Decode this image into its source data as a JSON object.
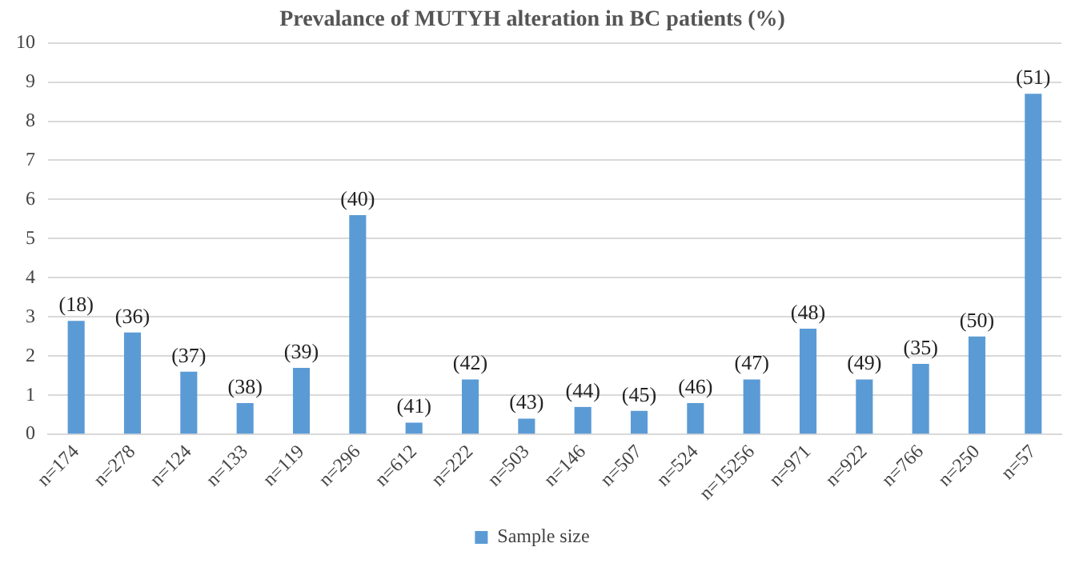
{
  "chart_data": {
    "type": "bar",
    "title": "Prevalance of MUTYH alteration in BC patients (%)",
    "categories": [
      "n=174",
      "n=278",
      "n=124",
      "n=133",
      "n=119",
      "n=296",
      "n=612",
      "n=222",
      "n=503",
      "n=146",
      "n=507",
      "n=524",
      "n=15256",
      "n=971",
      "n=922",
      "n=766",
      "n=250",
      "n=57"
    ],
    "series": [
      {
        "name": "Sample size",
        "color": "#5b9bd5",
        "values": [
          2.9,
          2.6,
          1.6,
          0.8,
          1.7,
          5.6,
          0.3,
          1.4,
          0.4,
          0.7,
          0.6,
          0.8,
          1.4,
          2.7,
          1.4,
          1.8,
          2.5,
          8.7
        ]
      }
    ],
    "annotations": [
      {
        "text": "(18)",
        "x": "n=174",
        "y": 2.9
      },
      {
        "text": "(36)",
        "x": "n=278",
        "y": 2.6
      },
      {
        "text": "(37)",
        "x": "n=124",
        "y": 1.6
      },
      {
        "text": "(38)",
        "x": "n=133",
        "y": 0.8
      },
      {
        "text": "(39)",
        "x": "n=119",
        "y": 1.7
      },
      {
        "text": "(40)",
        "x": "n=296",
        "y": 5.6
      },
      {
        "text": "(41)",
        "x": "n=612",
        "y": 0.3
      },
      {
        "text": "(42)",
        "x": "n=222",
        "y": 1.4
      },
      {
        "text": "(43)",
        "x": "n=503",
        "y": 0.4
      },
      {
        "text": "(44)",
        "x": "n=146",
        "y": 0.7
      },
      {
        "text": "(45)",
        "x": "n=507",
        "y": 0.6
      },
      {
        "text": "(46)",
        "x": "n=524",
        "y": 0.8
      },
      {
        "text": "(47)",
        "x": "n=15256",
        "y": 1.4
      },
      {
        "text": "(48)",
        "x": "n=971",
        "y": 2.7
      },
      {
        "text": "(49)",
        "x": "n=922",
        "y": 1.4
      },
      {
        "text": "(35)",
        "x": "n=766",
        "y": 1.8
      },
      {
        "text": "(50)",
        "x": "n=250",
        "y": 2.5
      },
      {
        "text": "(51)",
        "x": "n=57",
        "y": 8.7
      }
    ],
    "ylim": [
      0,
      10
    ],
    "yticks": [
      0,
      1,
      2,
      3,
      4,
      5,
      6,
      7,
      8,
      9,
      10
    ],
    "grid": "y",
    "legend": "bottom"
  }
}
